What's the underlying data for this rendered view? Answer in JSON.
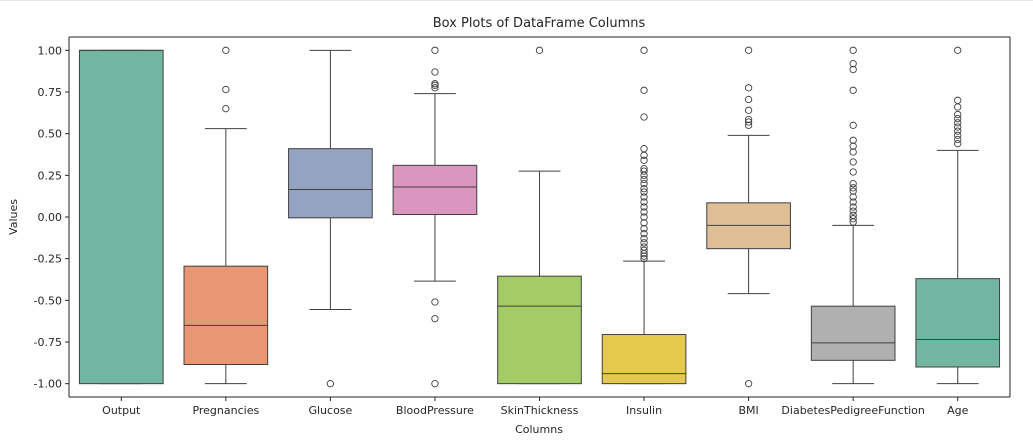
{
  "chart_data": {
    "type": "box",
    "title": "Box Plots of DataFrame Columns",
    "xlabel": "Columns",
    "ylabel": "Values",
    "ylim": [
      -1.08,
      1.08
    ],
    "yticks": [
      "1.00",
      "0.75",
      "0.50",
      "0.25",
      "0.00",
      "-0.25",
      "-0.50",
      "-0.75",
      "-1.00"
    ],
    "ytick_values": [
      1.0,
      0.75,
      0.5,
      0.25,
      0.0,
      -0.25,
      -0.5,
      -0.75,
      -1.0
    ],
    "grid": false,
    "categories": [
      "Output",
      "Pregnancies",
      "Glucose",
      "BloodPressure",
      "SkinThickness",
      "Insulin",
      "BMI",
      "DiabetesPedigreeFunction",
      "Age"
    ],
    "boxes": [
      {
        "category": "Output",
        "color": "#72b6a1",
        "whisker_low": -1.0,
        "q1": -1.0,
        "median": 1.0,
        "q3": 1.0,
        "whisker_high": 1.0,
        "outliers": []
      },
      {
        "category": "Pregnancies",
        "color": "#e99675",
        "whisker_low": -1.0,
        "q1": -0.885,
        "median": -0.65,
        "q3": -0.295,
        "whisker_high": 0.53,
        "outliers": [
          0.65,
          0.765,
          1.0
        ]
      },
      {
        "category": "Glucose",
        "color": "#95a3c3",
        "whisker_low": -0.555,
        "q1": -0.005,
        "median": 0.165,
        "q3": 0.41,
        "whisker_high": 1.0,
        "outliers": [
          -1.0
        ]
      },
      {
        "category": "BloodPressure",
        "color": "#db96c0",
        "whisker_low": -0.385,
        "q1": 0.015,
        "median": 0.18,
        "q3": 0.31,
        "whisker_high": 0.74,
        "outliers": [
          -0.61,
          -0.51,
          -1.0,
          0.775,
          0.79,
          0.8,
          0.87,
          1.0
        ]
      },
      {
        "category": "SkinThickness",
        "color": "#a4cc66",
        "whisker_low": -1.0,
        "q1": -1.0,
        "median": -0.535,
        "q3": -0.355,
        "whisker_high": 0.275,
        "outliers": [
          1.0
        ]
      },
      {
        "category": "Insulin",
        "color": "#e5c94f",
        "whisker_low": -1.0,
        "q1": -1.0,
        "median": -0.94,
        "q3": -0.705,
        "whisker_high": -0.265,
        "outliers": [
          -0.25,
          -0.235,
          -0.22,
          -0.2,
          -0.18,
          -0.155,
          -0.13,
          -0.1,
          -0.07,
          -0.035,
          0.0,
          0.03,
          0.06,
          0.09,
          0.12,
          0.15,
          0.17,
          0.2,
          0.225,
          0.25,
          0.275,
          0.29,
          0.34,
          0.37,
          0.41,
          0.6,
          0.76,
          1.0
        ]
      },
      {
        "category": "BMI",
        "color": "#dfc096",
        "whisker_low": -0.46,
        "q1": -0.19,
        "median": -0.05,
        "q3": 0.085,
        "whisker_high": 0.49,
        "outliers": [
          -1.0,
          0.55,
          0.57,
          0.585,
          0.64,
          0.705,
          0.775,
          1.0
        ]
      },
      {
        "category": "DiabetesPedigreeFunction",
        "color": "#b0b0b0",
        "whisker_low": -1.0,
        "q1": -0.86,
        "median": -0.755,
        "q3": -0.535,
        "whisker_high": -0.05,
        "outliers": [
          -0.03,
          -0.01,
          0.01,
          0.035,
          0.06,
          0.09,
          0.12,
          0.155,
          0.175,
          0.2,
          0.27,
          0.33,
          0.39,
          0.425,
          0.46,
          0.55,
          0.76,
          0.885,
          0.92,
          1.0
        ]
      },
      {
        "category": "Age",
        "color": "#72b6a1",
        "whisker_low": -1.0,
        "q1": -0.9,
        "median": -0.735,
        "q3": -0.37,
        "whisker_high": 0.4,
        "outliers": [
          0.44,
          0.465,
          0.49,
          0.515,
          0.54,
          0.565,
          0.59,
          0.615,
          0.66,
          0.7,
          1.0
        ]
      }
    ]
  }
}
